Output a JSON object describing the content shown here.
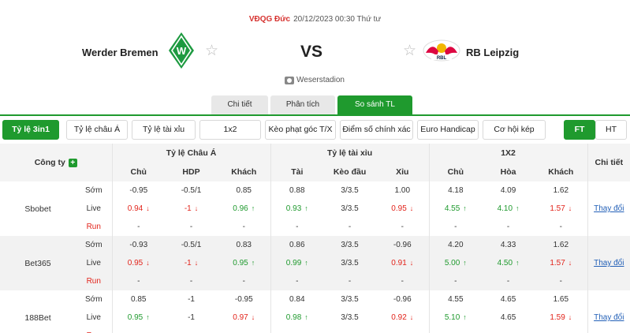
{
  "match": {
    "league": "VĐQG Đức",
    "datetime": "20/12/2023 00:30 Thứ tư",
    "home_team": "Werder Bremen",
    "away_team": "RB Leipzig",
    "vs": "VS",
    "venue": "Weserstadion"
  },
  "tabs": [
    {
      "label": "Chi tiết",
      "active": false
    },
    {
      "label": "Phân tích",
      "active": false
    },
    {
      "label": "So sánh TL",
      "active": true
    }
  ],
  "filters": [
    {
      "label": "Tỷ lệ 3in1",
      "active": true
    },
    {
      "label": "Tỷ lệ châu Á",
      "active": false
    },
    {
      "label": "Tỷ lệ tài xỉu",
      "active": false
    },
    {
      "label": "1x2",
      "active": false
    },
    {
      "label": "Kèo phạt góc T/X",
      "active": false
    },
    {
      "label": "Điểm số chính xác",
      "active": false
    },
    {
      "label": "Euro Handicap",
      "active": false
    },
    {
      "label": "Cơ hội kép",
      "active": false
    }
  ],
  "period": [
    {
      "label": "FT",
      "active": true
    },
    {
      "label": "HT",
      "active": false
    }
  ],
  "table": {
    "company_header": "Công ty",
    "group_headers": [
      "Tỷ lệ Châu Á",
      "Tỷ lệ tài xỉu",
      "1X2"
    ],
    "detail_header": "Chi tiết",
    "sub_headers": [
      "Chủ",
      "HDP",
      "Khách",
      "Tài",
      "Kèo đầu",
      "Xỉu",
      "Chủ",
      "Hòa",
      "Khách"
    ],
    "detail_link": "Thay đổi",
    "row_labels": [
      "Sớm",
      "Live",
      "Run"
    ],
    "companies": [
      {
        "name": "Sbobet",
        "early": [
          "-0.95",
          "-0.5/1",
          "0.85",
          "0.88",
          "3/3.5",
          "1.00",
          "4.18",
          "4.09",
          "1.62"
        ],
        "live": [
          "0.94",
          "-1",
          "0.96",
          "0.93",
          "3/3.5",
          "0.95",
          "4.55",
          "4.10",
          "1.57"
        ],
        "live_dir": [
          "down",
          "down",
          "up",
          "up",
          "",
          "down",
          "up",
          "up",
          "down"
        ],
        "run": [
          "-",
          "-",
          "-",
          "-",
          "-",
          "-",
          "-",
          "-",
          "-"
        ]
      },
      {
        "name": "Bet365",
        "early": [
          "-0.93",
          "-0.5/1",
          "0.83",
          "0.86",
          "3/3.5",
          "-0.96",
          "4.20",
          "4.33",
          "1.62"
        ],
        "live": [
          "0.95",
          "-1",
          "0.95",
          "0.99",
          "3/3.5",
          "0.91",
          "5.00",
          "4.50",
          "1.57"
        ],
        "live_dir": [
          "down",
          "down",
          "up",
          "up",
          "",
          "down",
          "up",
          "up",
          "down"
        ],
        "run": [
          "-",
          "-",
          "-",
          "-",
          "-",
          "-",
          "-",
          "-",
          "-"
        ]
      },
      {
        "name": "188Bet",
        "early": [
          "0.85",
          "-1",
          "-0.95",
          "0.84",
          "3/3.5",
          "-0.96",
          "4.55",
          "4.65",
          "1.65"
        ],
        "live": [
          "0.95",
          "-1",
          "0.97",
          "0.98",
          "3/3.5",
          "0.92",
          "5.10",
          "4.65",
          "1.59"
        ],
        "live_dir": [
          "up",
          "",
          "down",
          "up",
          "",
          "down",
          "up",
          "",
          "down"
        ],
        "run": [
          "-",
          "-",
          "-",
          "-",
          "-",
          "-",
          "-",
          "-",
          "-"
        ]
      }
    ]
  },
  "colors": {
    "accent": "#1f9a2e",
    "down": "#e2231a",
    "up": "#1f9a2e",
    "link": "#2461b8"
  }
}
